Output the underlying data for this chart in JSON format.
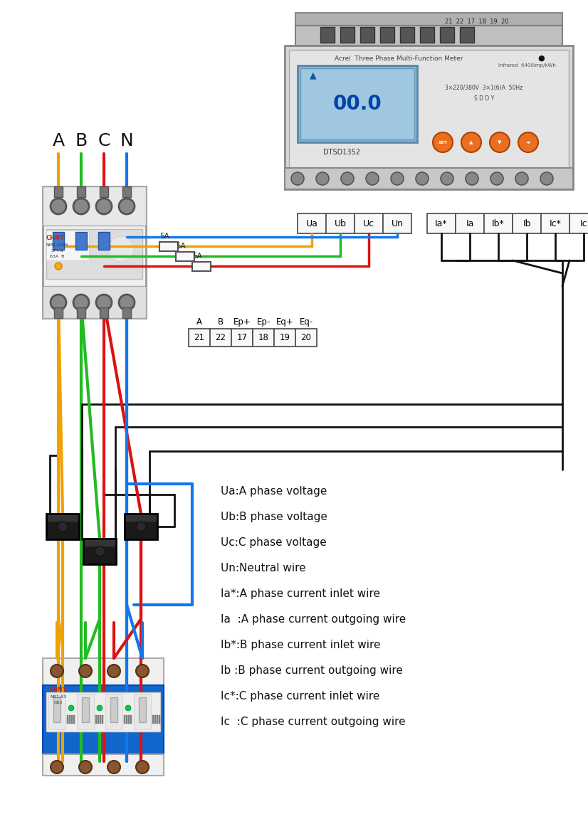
{
  "bg_color": "#ffffff",
  "wire_A": "#f0a000",
  "wire_B": "#22bb22",
  "wire_C": "#dd1111",
  "wire_N": "#1177ee",
  "voltage_terminals": [
    "Ua",
    "Ub",
    "Uc",
    "Un"
  ],
  "current_terminals": [
    "Ia*",
    "Ia",
    "Ib*",
    "Ib",
    "Ic*",
    "Ic"
  ],
  "pin_top_labels": [
    "A",
    "B",
    "Ep+",
    "Ep-",
    "Eq+",
    "Eq-"
  ],
  "pin_numbers": [
    "21",
    "22",
    "17",
    "18",
    "19",
    "20"
  ],
  "phase_labels": [
    "A",
    "B",
    "C",
    "N"
  ],
  "legend": [
    "Ua:A phase voltage",
    "Ub:B phase voltage",
    "Uc:C phase voltage",
    "Un:Neutral wire",
    "Ia*:A phase current inlet wire",
    "Ia  :A phase current outgoing wire",
    "Ib*:B phase current inlet wire",
    "Ib :B phase current outgoing wire",
    "Ic*:C phase current inlet wire",
    "Ic  :C phase current outgoing wire"
  ]
}
